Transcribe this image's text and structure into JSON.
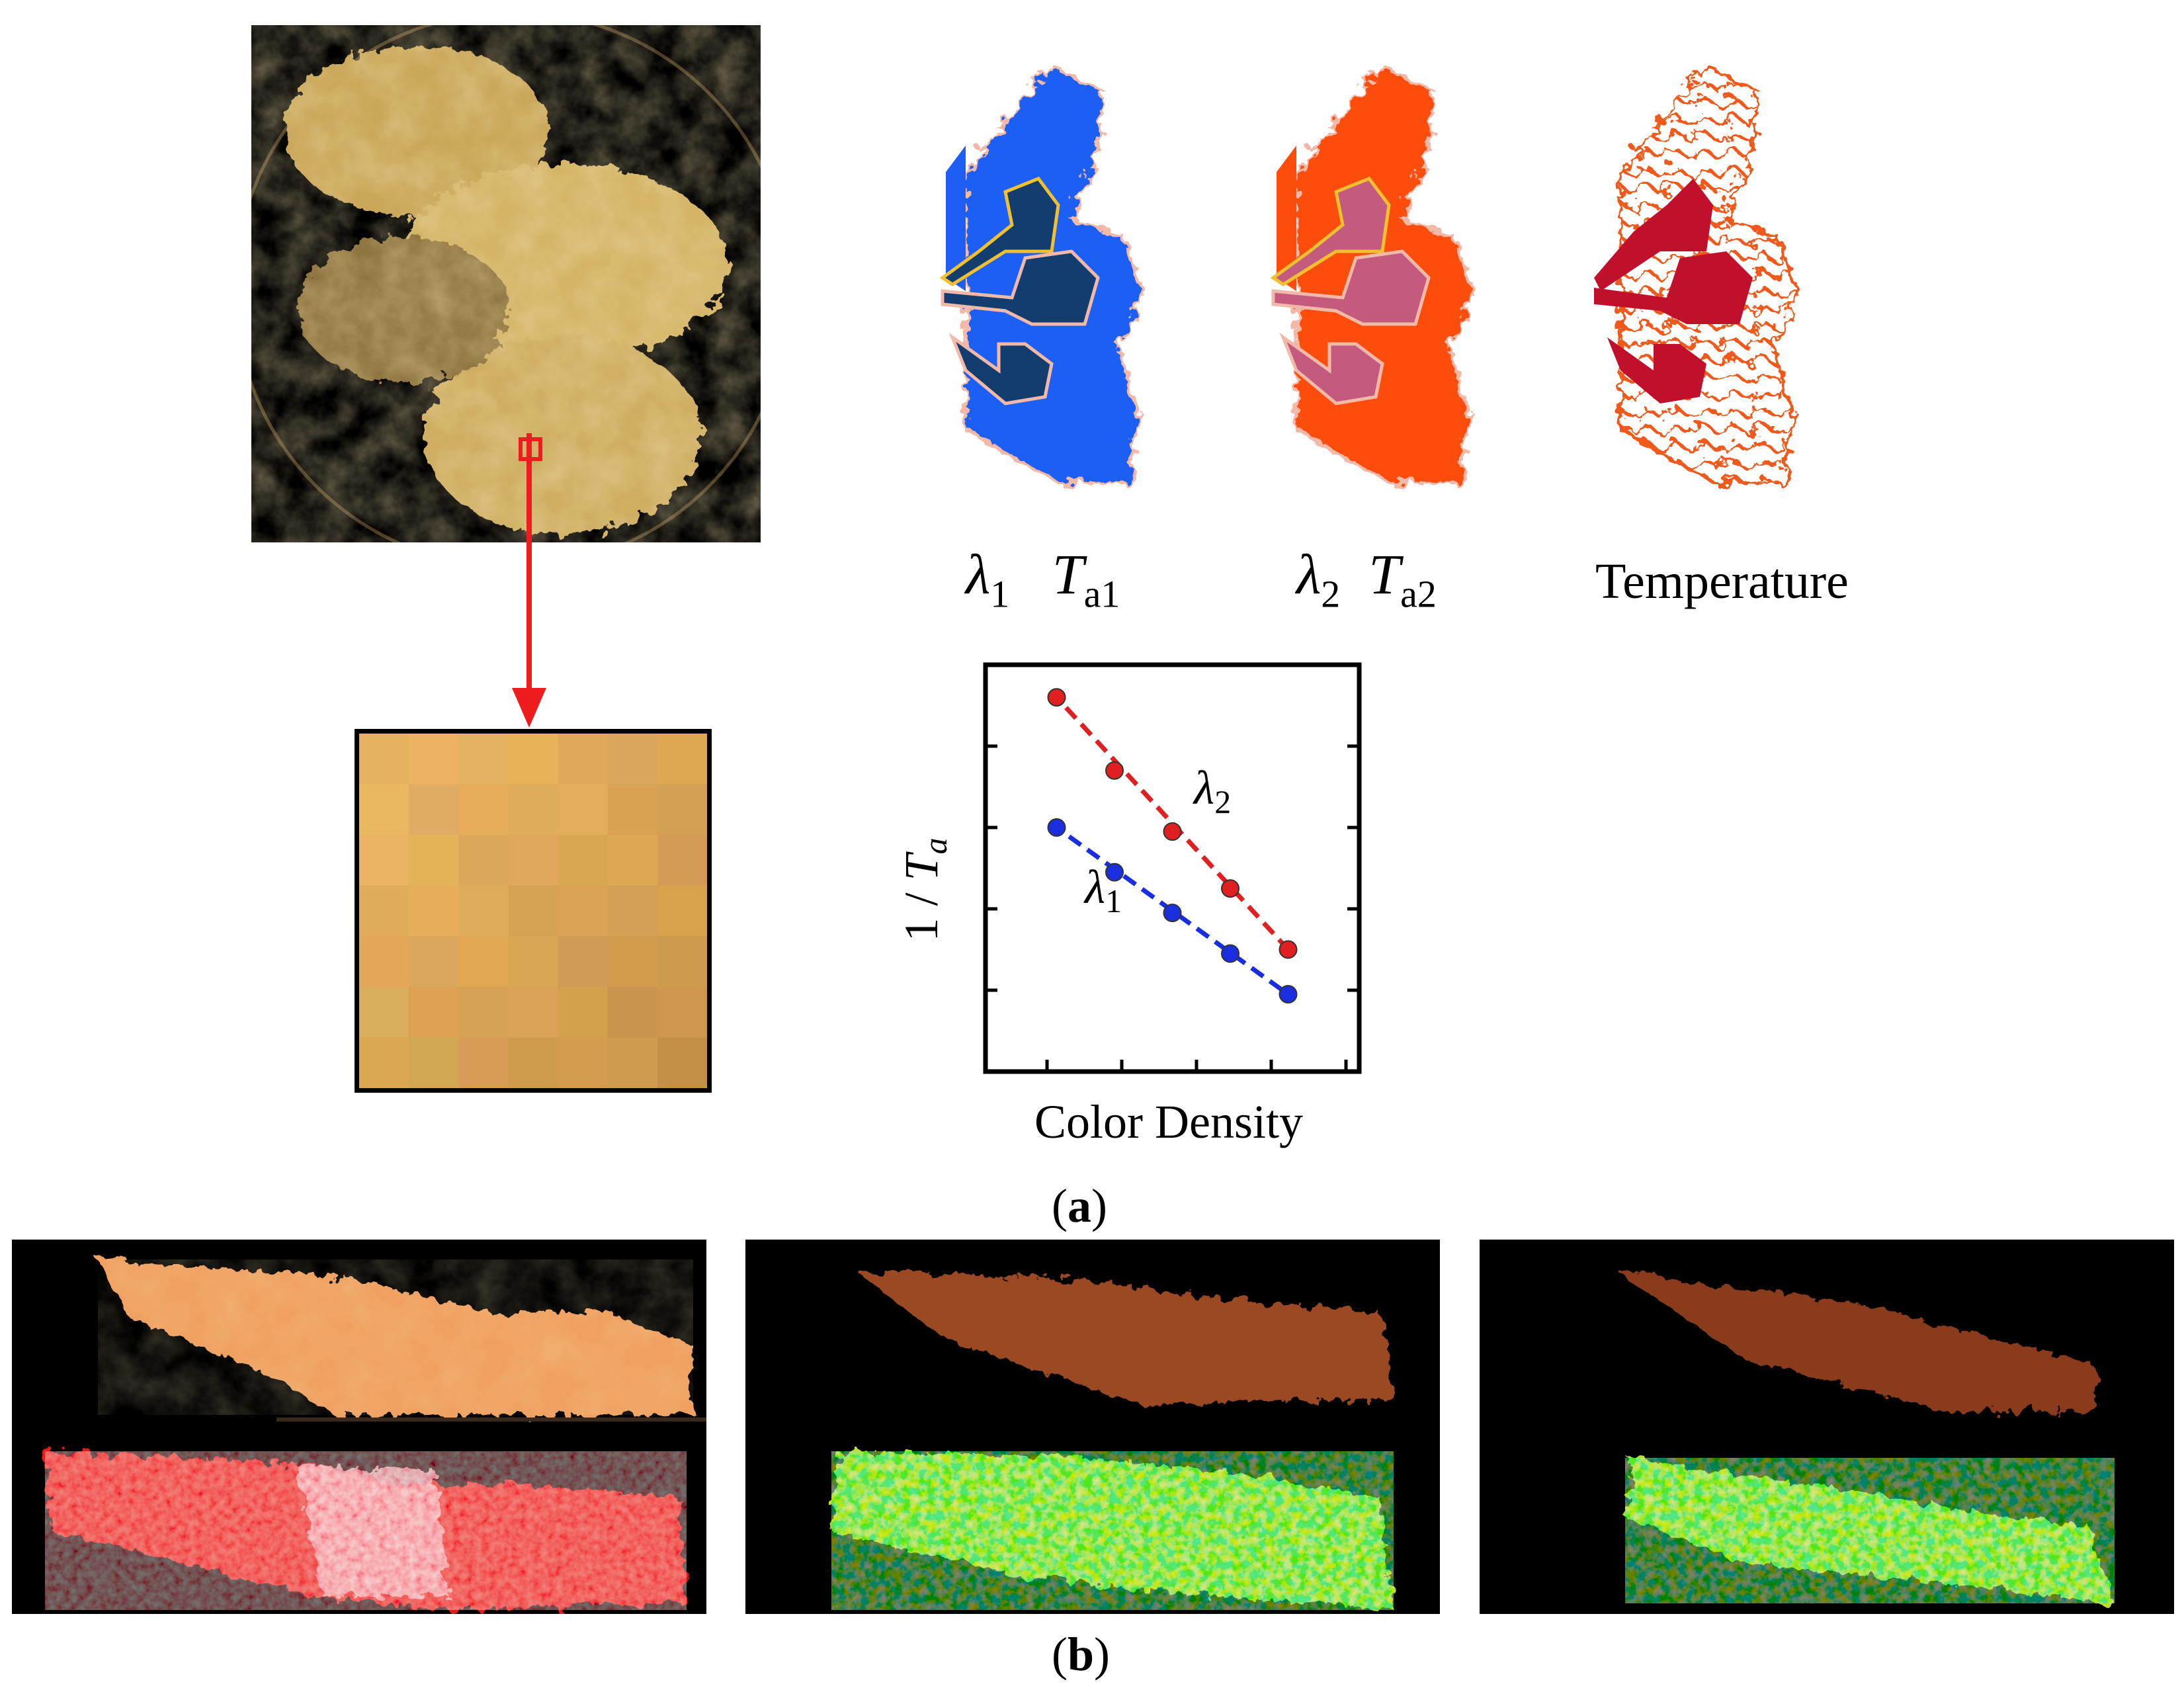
{
  "panel_a": {
    "caption_open": "(",
    "caption_letter": "a",
    "caption_close": ")",
    "maps": [
      {
        "lambda": "λ",
        "lambda_sub": "1",
        "t": "T",
        "t_sub": "a1",
        "fill": "#1f5ef5",
        "core": "#123d6e",
        "outline": "#f2b8a8"
      },
      {
        "lambda": "λ",
        "lambda_sub": "2",
        "t": "T",
        "t_sub": "a2",
        "fill": "#fd4d0c",
        "core": "#c45a7e",
        "outline": "#f2b8a8"
      },
      {
        "text": "Temperature",
        "fill": "#f26a2a",
        "core": "#c0102c"
      }
    ],
    "graph": {
      "ylabel_prefix": "1 / ",
      "ylabel_var": "T",
      "ylabel_sub": "a",
      "xlabel": "Color Density",
      "series": [
        {
          "name": "λ",
          "name_sub": "2",
          "color": "#e02020"
        },
        {
          "name": "λ",
          "name_sub": "1",
          "color": "#1a2ee0"
        }
      ]
    },
    "colors": {
      "arrow": "#ee1c1c",
      "flame_photo": "#d9b56a",
      "patch": "#d9a85a"
    }
  },
  "panel_b": {
    "caption_open": "(",
    "caption_letter": "b",
    "caption_close": ")",
    "images": [
      "flame-high",
      "flame-medium",
      "flame-low"
    ]
  },
  "chart_data": {
    "type": "line",
    "xlabel": "Color Density",
    "ylabel": "1 / Ta",
    "series": [
      {
        "name": "λ2",
        "x": [
          1,
          2,
          3,
          4,
          5
        ],
        "y": [
          4.6,
          3.7,
          2.95,
          2.25,
          1.5
        ]
      },
      {
        "name": "λ1",
        "x": [
          1,
          2,
          3,
          4,
          5
        ],
        "y": [
          3.0,
          2.45,
          1.95,
          1.45,
          0.95
        ]
      }
    ]
  }
}
